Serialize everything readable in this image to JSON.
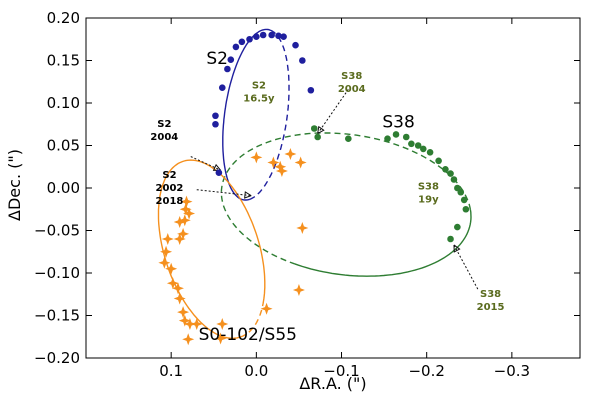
{
  "chart_data": {
    "type": "scatter",
    "xlabel": "ΔR.A. (\")",
    "ylabel": "ΔDec. (\")",
    "xlim": [
      0.2,
      -0.38
    ],
    "ylim": [
      -0.2,
      0.2
    ],
    "x_ticks": [
      0.1,
      0.0,
      -0.1,
      -0.2,
      -0.3
    ],
    "x_tick_labels": [
      "0.1",
      "0.0",
      "−0.1",
      "−0.2",
      "−0.3"
    ],
    "y_ticks": [
      0.2,
      0.15,
      0.1,
      0.05,
      0.0,
      -0.05,
      -0.1,
      -0.15,
      -0.2
    ],
    "y_tick_labels": [
      "0.20",
      "0.15",
      "0.10",
      "0.05",
      "0.00",
      "−0.05",
      "−0.10",
      "−0.15",
      "−0.20"
    ],
    "grid": false,
    "series": [
      {
        "name": "S2",
        "color": "#1f1f9e",
        "marker": "circle",
        "orbit": {
          "cx": 0.0005,
          "cy": 0.0862,
          "a": 0.101,
          "b": 0.0367,
          "angle_deg": 82,
          "solid_from_deg": -10,
          "solid_to_deg": 190
        },
        "points": [
          {
            "x": 0.044,
            "y": 0.018
          },
          {
            "x": 0.048,
            "y": 0.075
          },
          {
            "x": 0.048,
            "y": 0.085
          },
          {
            "x": 0.04,
            "y": 0.118
          },
          {
            "x": 0.034,
            "y": 0.14
          },
          {
            "x": 0.03,
            "y": 0.151
          },
          {
            "x": 0.024,
            "y": 0.166
          },
          {
            "x": 0.017,
            "y": 0.172
          },
          {
            "x": 0.008,
            "y": 0.175
          },
          {
            "x": 0.0,
            "y": 0.178
          },
          {
            "x": -0.008,
            "y": 0.18
          },
          {
            "x": -0.018,
            "y": 0.18
          },
          {
            "x": -0.026,
            "y": 0.179
          },
          {
            "x": -0.032,
            "y": 0.178
          },
          {
            "x": -0.046,
            "y": 0.168
          },
          {
            "x": -0.054,
            "y": 0.15
          },
          {
            "x": -0.064,
            "y": 0.115
          }
        ]
      },
      {
        "name": "S38",
        "color": "#2e7d32",
        "marker": "circle",
        "orbit": {
          "cx": -0.1055,
          "cy": -0.0195,
          "a": 0.1475,
          "b": 0.0825,
          "angle_deg": -8,
          "solid_from_deg": -110,
          "solid_to_deg": 10
        },
        "points": [
          {
            "x": -0.068,
            "y": 0.07
          },
          {
            "x": -0.072,
            "y": 0.06
          },
          {
            "x": -0.108,
            "y": 0.058
          },
          {
            "x": -0.154,
            "y": 0.058
          },
          {
            "x": -0.164,
            "y": 0.063
          },
          {
            "x": -0.176,
            "y": 0.06
          },
          {
            "x": -0.182,
            "y": 0.052
          },
          {
            "x": -0.19,
            "y": 0.05
          },
          {
            "x": -0.196,
            "y": 0.046
          },
          {
            "x": -0.204,
            "y": 0.042
          },
          {
            "x": -0.214,
            "y": 0.032
          },
          {
            "x": -0.222,
            "y": 0.022
          },
          {
            "x": -0.228,
            "y": 0.017
          },
          {
            "x": -0.232,
            "y": 0.01
          },
          {
            "x": -0.236,
            "y": 0.0
          },
          {
            "x": -0.24,
            "y": -0.005
          },
          {
            "x": -0.244,
            "y": -0.014
          },
          {
            "x": -0.246,
            "y": -0.025
          },
          {
            "x": -0.236,
            "y": -0.046
          },
          {
            "x": -0.228,
            "y": -0.06
          }
        ]
      },
      {
        "name": "S0-102/S55",
        "color": "#f5901e",
        "marker": "star",
        "orbit": {
          "cx": 0.0525,
          "cy": -0.072,
          "a": 0.1085,
          "b": 0.0555,
          "angle_deg": -72,
          "solid_from_deg": 45,
          "solid_to_deg": 360
        },
        "points": [
          {
            "x": 0.108,
            "y": -0.088
          },
          {
            "x": 0.106,
            "y": -0.075
          },
          {
            "x": 0.104,
            "y": -0.06
          },
          {
            "x": 0.09,
            "y": -0.06
          },
          {
            "x": 0.086,
            "y": -0.054
          },
          {
            "x": 0.084,
            "y": -0.038
          },
          {
            "x": 0.083,
            "y": -0.025
          },
          {
            "x": 0.082,
            "y": -0.016
          },
          {
            "x": 0.079,
            "y": -0.03
          },
          {
            "x": 0.09,
            "y": -0.04
          },
          {
            "x": 0.1,
            "y": -0.095
          },
          {
            "x": 0.098,
            "y": -0.112
          },
          {
            "x": 0.092,
            "y": -0.118
          },
          {
            "x": 0.09,
            "y": -0.13
          },
          {
            "x": 0.086,
            "y": -0.146
          },
          {
            "x": 0.084,
            "y": -0.156
          },
          {
            "x": 0.078,
            "y": -0.16
          },
          {
            "x": 0.07,
            "y": -0.16
          },
          {
            "x": 0.08,
            "y": -0.178
          },
          {
            "x": 0.04,
            "y": -0.16
          },
          {
            "x": 0.0,
            "y": 0.036
          },
          {
            "x": -0.02,
            "y": 0.03
          },
          {
            "x": -0.028,
            "y": 0.025
          },
          {
            "x": -0.03,
            "y": 0.02
          },
          {
            "x": -0.04,
            "y": 0.04
          },
          {
            "x": -0.052,
            "y": 0.03
          },
          {
            "x": -0.054,
            "y": -0.047
          },
          {
            "x": -0.05,
            "y": -0.12
          },
          {
            "x": -0.012,
            "y": -0.142
          },
          {
            "x": 0.042,
            "y": -0.177
          }
        ]
      }
    ],
    "annotations": [
      {
        "lines": [
          "S2"
        ],
        "style": "big",
        "color": "#000000",
        "x": 0.046,
        "y": 0.146
      },
      {
        "lines": [
          "S2",
          "16.5y"
        ],
        "style": "small",
        "color": "#5a6b1e",
        "x": -0.003,
        "y": 0.117
      },
      {
        "lines": [
          "S38",
          "2004"
        ],
        "style": "small",
        "color": "#5a6b1e",
        "x": -0.112,
        "y": 0.128
      },
      {
        "lines": [
          "S38"
        ],
        "style": "big",
        "color": "#000000",
        "x": -0.167,
        "y": 0.071
      },
      {
        "lines": [
          "S2",
          "2004"
        ],
        "style": "small",
        "color": "#000000",
        "x": 0.108,
        "y": 0.072
      },
      {
        "lines": [
          "S2",
          "2002",
          "2018"
        ],
        "style": "small",
        "color": "#000000",
        "x": 0.102,
        "y": 0.012
      },
      {
        "lines": [
          "S38",
          "19y"
        ],
        "style": "small",
        "color": "#5a6b1e",
        "x": -0.202,
        "y": -0.002
      },
      {
        "lines": [
          "S38",
          "2015"
        ],
        "style": "small",
        "color": "#5a6b1e",
        "x": -0.275,
        "y": -0.128
      },
      {
        "lines": [
          "S0-102/S55"
        ],
        "style": "big",
        "color": "#000000",
        "x": 0.01,
        "y": -0.179
      }
    ],
    "arrows": [
      {
        "from": [
          -0.108,
          0.116
        ],
        "to": [
          -0.072,
          0.064
        ]
      },
      {
        "from": [
          0.077,
          0.037
        ],
        "to": [
          0.042,
          0.021
        ]
      },
      {
        "from": [
          0.07,
          -0.002
        ],
        "to": [
          0.006,
          -0.009
        ]
      },
      {
        "from": [
          -0.26,
          -0.119
        ],
        "to": [
          -0.232,
          -0.067
        ]
      }
    ]
  }
}
